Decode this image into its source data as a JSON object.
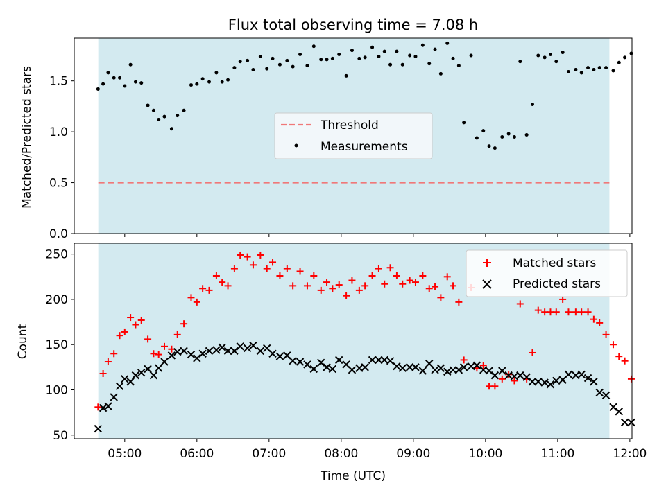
{
  "chart_data": [
    {
      "type": "scatter",
      "title": "Flux total observing time = 7.08 h",
      "ylabel": "Matched/Predicted stars",
      "xlabel": "",
      "ylim": [
        0,
        1.92
      ],
      "xlim_hours": [
        4.3,
        12.03
      ],
      "yticks": [
        0.0,
        0.5,
        1.0,
        1.5
      ],
      "ytick_labels": [
        "0.0",
        "0.5",
        "1.0",
        "1.5"
      ],
      "shaded_interval_utc": [
        "04:38",
        "11:43"
      ],
      "shade_color": "#d3eaf0",
      "legend_position": "center",
      "threshold": {
        "name": "Threshold",
        "value": 0.5,
        "color": "#f07878"
      },
      "series": [
        {
          "name": "Measurements",
          "color": "#000000",
          "points": [
            [
              4.63,
              1.42
            ],
            [
              4.7,
              1.47
            ],
            [
              4.77,
              1.58
            ],
            [
              4.85,
              1.53
            ],
            [
              4.93,
              1.53
            ],
            [
              5.0,
              1.45
            ],
            [
              5.08,
              1.66
            ],
            [
              5.15,
              1.49
            ],
            [
              5.23,
              1.48
            ],
            [
              5.32,
              1.26
            ],
            [
              5.4,
              1.21
            ],
            [
              5.47,
              1.12
            ],
            [
              5.55,
              1.15
            ],
            [
              5.65,
              1.03
            ],
            [
              5.73,
              1.16
            ],
            [
              5.82,
              1.21
            ],
            [
              5.92,
              1.46
            ],
            [
              6.0,
              1.47
            ],
            [
              6.08,
              1.52
            ],
            [
              6.17,
              1.49
            ],
            [
              6.27,
              1.58
            ],
            [
              6.35,
              1.49
            ],
            [
              6.43,
              1.51
            ],
            [
              6.52,
              1.63
            ],
            [
              6.6,
              1.69
            ],
            [
              6.7,
              1.7
            ],
            [
              6.78,
              1.61
            ],
            [
              6.88,
              1.74
            ],
            [
              6.97,
              1.62
            ],
            [
              7.05,
              1.72
            ],
            [
              7.15,
              1.66
            ],
            [
              7.25,
              1.7
            ],
            [
              7.33,
              1.64
            ],
            [
              7.43,
              1.76
            ],
            [
              7.53,
              1.65
            ],
            [
              7.62,
              1.84
            ],
            [
              7.72,
              1.71
            ],
            [
              7.8,
              1.71
            ],
            [
              7.88,
              1.72
            ],
            [
              7.97,
              1.76
            ],
            [
              8.07,
              1.55
            ],
            [
              8.15,
              1.8
            ],
            [
              8.25,
              1.72
            ],
            [
              8.33,
              1.73
            ],
            [
              8.43,
              1.83
            ],
            [
              8.52,
              1.74
            ],
            [
              8.6,
              1.79
            ],
            [
              8.68,
              1.66
            ],
            [
              8.77,
              1.79
            ],
            [
              8.85,
              1.66
            ],
            [
              8.95,
              1.75
            ],
            [
              9.03,
              1.74
            ],
            [
              9.13,
              1.85
            ],
            [
              9.22,
              1.67
            ],
            [
              9.3,
              1.81
            ],
            [
              9.38,
              1.57
            ],
            [
              9.47,
              1.87
            ],
            [
              9.55,
              1.72
            ],
            [
              9.63,
              1.65
            ],
            [
              9.7,
              1.09
            ],
            [
              9.8,
              1.75
            ],
            [
              9.88,
              0.94
            ],
            [
              9.97,
              1.01
            ],
            [
              10.05,
              0.86
            ],
            [
              10.13,
              0.84
            ],
            [
              10.23,
              0.95
            ],
            [
              10.32,
              0.98
            ],
            [
              10.4,
              0.95
            ],
            [
              10.48,
              1.69
            ],
            [
              10.57,
              0.97
            ],
            [
              10.65,
              1.27
            ],
            [
              10.73,
              1.75
            ],
            [
              10.82,
              1.73
            ],
            [
              10.9,
              1.76
            ],
            [
              10.98,
              1.69
            ],
            [
              11.07,
              1.78
            ],
            [
              11.15,
              1.59
            ],
            [
              11.25,
              1.61
            ],
            [
              11.33,
              1.58
            ],
            [
              11.42,
              1.63
            ],
            [
              11.5,
              1.61
            ],
            [
              11.58,
              1.63
            ],
            [
              11.67,
              1.63
            ],
            [
              11.77,
              1.6
            ],
            [
              11.85,
              1.68
            ],
            [
              11.93,
              1.73
            ],
            [
              12.02,
              1.77
            ]
          ]
        }
      ]
    },
    {
      "type": "scatter",
      "xlabel": "Time (UTC)",
      "ylabel": "Count",
      "ylim": [
        46,
        262
      ],
      "xlim_hours": [
        4.3,
        12.03
      ],
      "yticks": [
        50,
        100,
        150,
        200,
        250
      ],
      "ytick_labels": [
        "50",
        "100",
        "150",
        "200",
        "250"
      ],
      "xticks_hours": [
        5,
        6,
        7,
        8,
        9,
        10,
        11,
        12
      ],
      "xtick_labels": [
        "05:00",
        "06:00",
        "07:00",
        "08:00",
        "09:00",
        "10:00",
        "11:00",
        "12:00"
      ],
      "shaded_interval_utc": [
        "04:38",
        "11:43"
      ],
      "shade_color": "#d3eaf0",
      "legend_position": "top-right",
      "series": [
        {
          "name": "Matched stars",
          "marker": "+",
          "color": "#ff0000",
          "points": [
            [
              4.63,
              81
            ],
            [
              4.7,
              118
            ],
            [
              4.77,
              131
            ],
            [
              4.85,
              140
            ],
            [
              4.93,
              160
            ],
            [
              5.0,
              164
            ],
            [
              5.08,
              180
            ],
            [
              5.15,
              172
            ],
            [
              5.23,
              177
            ],
            [
              5.32,
              156
            ],
            [
              5.4,
              140
            ],
            [
              5.47,
              139
            ],
            [
              5.55,
              148
            ],
            [
              5.65,
              145
            ],
            [
              5.73,
              161
            ],
            [
              5.82,
              173
            ],
            [
              5.92,
              202
            ],
            [
              6.0,
              197
            ],
            [
              6.08,
              212
            ],
            [
              6.17,
              210
            ],
            [
              6.27,
              226
            ],
            [
              6.35,
              219
            ],
            [
              6.43,
              215
            ],
            [
              6.52,
              234
            ],
            [
              6.6,
              249
            ],
            [
              6.7,
              247
            ],
            [
              6.78,
              238
            ],
            [
              6.88,
              249
            ],
            [
              6.97,
              234
            ],
            [
              7.05,
              241
            ],
            [
              7.15,
              226
            ],
            [
              7.25,
              234
            ],
            [
              7.33,
              215
            ],
            [
              7.43,
              231
            ],
            [
              7.53,
              215
            ],
            [
              7.62,
              226
            ],
            [
              7.72,
              210
            ],
            [
              7.8,
              219
            ],
            [
              7.88,
              212
            ],
            [
              7.97,
              216
            ],
            [
              8.07,
              204
            ],
            [
              8.15,
              221
            ],
            [
              8.25,
              210
            ],
            [
              8.33,
              215
            ],
            [
              8.43,
              226
            ],
            [
              8.52,
              234
            ],
            [
              8.6,
              217
            ],
            [
              8.68,
              235
            ],
            [
              8.77,
              226
            ],
            [
              8.85,
              217
            ],
            [
              8.95,
              221
            ],
            [
              9.03,
              219
            ],
            [
              9.13,
              226
            ],
            [
              9.22,
              212
            ],
            [
              9.3,
              214
            ],
            [
              9.38,
              202
            ],
            [
              9.47,
              225
            ],
            [
              9.55,
              215
            ],
            [
              9.63,
              197
            ],
            [
              9.7,
              133
            ],
            [
              9.8,
              213
            ],
            [
              9.88,
              124
            ],
            [
              9.97,
              127
            ],
            [
              10.05,
              104
            ],
            [
              10.13,
              104
            ],
            [
              10.23,
              112
            ],
            [
              10.32,
              117
            ],
            [
              10.4,
              110
            ],
            [
              10.48,
              195
            ],
            [
              10.57,
              112
            ],
            [
              10.65,
              141
            ],
            [
              10.73,
              188
            ],
            [
              10.82,
              186
            ],
            [
              10.9,
              186
            ],
            [
              10.98,
              186
            ],
            [
              11.07,
              200
            ],
            [
              11.15,
              186
            ],
            [
              11.25,
              186
            ],
            [
              11.33,
              186
            ],
            [
              11.42,
              186
            ],
            [
              11.5,
              178
            ],
            [
              11.58,
              174
            ],
            [
              11.67,
              161
            ],
            [
              11.77,
              150
            ],
            [
              11.85,
              137
            ],
            [
              11.93,
              132
            ],
            [
              12.02,
              112
            ]
          ]
        },
        {
          "name": "Predicted stars",
          "marker": "x",
          "color": "#000000",
          "points": [
            [
              4.63,
              57
            ],
            [
              4.7,
              80
            ],
            [
              4.77,
              82
            ],
            [
              4.85,
              92
            ],
            [
              4.93,
              104
            ],
            [
              5.0,
              112
            ],
            [
              5.08,
              109
            ],
            [
              5.15,
              116
            ],
            [
              5.23,
              119
            ],
            [
              5.32,
              123
            ],
            [
              5.4,
              116
            ],
            [
              5.47,
              124
            ],
            [
              5.55,
              131
            ],
            [
              5.65,
              138
            ],
            [
              5.73,
              142
            ],
            [
              5.82,
              143
            ],
            [
              5.92,
              139
            ],
            [
              6.0,
              135
            ],
            [
              6.08,
              140
            ],
            [
              6.17,
              143
            ],
            [
              6.27,
              144
            ],
            [
              6.35,
              147
            ],
            [
              6.43,
              143
            ],
            [
              6.52,
              143
            ],
            [
              6.6,
              148
            ],
            [
              6.7,
              146
            ],
            [
              6.78,
              149
            ],
            [
              6.88,
              143
            ],
            [
              6.97,
              146
            ],
            [
              7.05,
              140
            ],
            [
              7.15,
              137
            ],
            [
              7.25,
              138
            ],
            [
              7.33,
              132
            ],
            [
              7.43,
              131
            ],
            [
              7.53,
              128
            ],
            [
              7.62,
              123
            ],
            [
              7.72,
              130
            ],
            [
              7.8,
              125
            ],
            [
              7.88,
              123
            ],
            [
              7.97,
              133
            ],
            [
              8.07,
              128
            ],
            [
              8.15,
              122
            ],
            [
              8.25,
              124
            ],
            [
              8.33,
              125
            ],
            [
              8.43,
              133
            ],
            [
              8.52,
              133
            ],
            [
              8.6,
              133
            ],
            [
              8.68,
              132
            ],
            [
              8.77,
              126
            ],
            [
              8.85,
              124
            ],
            [
              8.95,
              125
            ],
            [
              9.03,
              125
            ],
            [
              9.13,
              121
            ],
            [
              9.22,
              129
            ],
            [
              9.3,
              122
            ],
            [
              9.38,
              124
            ],
            [
              9.47,
              120
            ],
            [
              9.55,
              122
            ],
            [
              9.63,
              122
            ],
            [
              9.7,
              125
            ],
            [
              9.8,
              126
            ],
            [
              9.88,
              127
            ],
            [
              9.97,
              122
            ],
            [
              10.05,
              121
            ],
            [
              10.13,
              116
            ],
            [
              10.23,
              121
            ],
            [
              10.32,
              116
            ],
            [
              10.4,
              115
            ],
            [
              10.48,
              116
            ],
            [
              10.57,
              114
            ],
            [
              10.65,
              109
            ],
            [
              10.73,
              109
            ],
            [
              10.82,
              108
            ],
            [
              10.9,
              106
            ],
            [
              10.98,
              110
            ],
            [
              11.07,
              111
            ],
            [
              11.15,
              117
            ],
            [
              11.25,
              116
            ],
            [
              11.33,
              117
            ],
            [
              11.42,
              113
            ],
            [
              11.5,
              109
            ],
            [
              11.58,
              97
            ],
            [
              11.67,
              94
            ],
            [
              11.77,
              81
            ],
            [
              11.85,
              76
            ],
            [
              11.93,
              64
            ],
            [
              12.02,
              64
            ]
          ]
        }
      ]
    }
  ]
}
